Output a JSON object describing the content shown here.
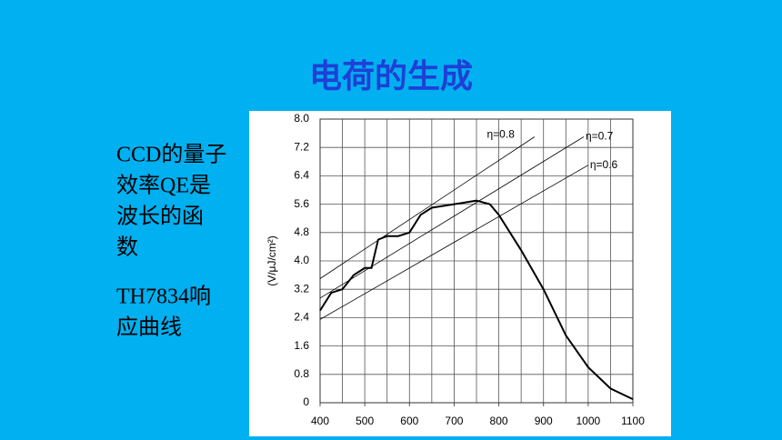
{
  "title": "电荷的生成",
  "paragraphs": [
    [
      "CCD的量子",
      "效率QE是",
      "波长的函",
      "数"
    ],
    [
      "TH7834响",
      "应曲线"
    ]
  ],
  "chart_data": {
    "type": "line",
    "y_label": "(V/μJ/cm²)",
    "xlim": [
      400,
      1100
    ],
    "xticks": [
      400,
      500,
      600,
      700,
      800,
      900,
      1000,
      1100
    ],
    "xgridlines": [
      400,
      450,
      500,
      550,
      600,
      650,
      700,
      750,
      800,
      850,
      900,
      950,
      1000,
      1050,
      1100
    ],
    "ylim": [
      0,
      8
    ],
    "yticks": [
      0,
      0.8,
      1.6,
      2.4,
      3.2,
      {
        "value": 4,
        "label": "4.0"
      },
      4.8,
      5.6,
      6.4,
      7.2,
      {
        "value": 8,
        "label": "8.0"
      }
    ],
    "grid": true,
    "series": [
      {
        "name": "TH7834",
        "color": "#000000",
        "width": 2,
        "x": [
          400,
          425,
          450,
          475,
          500,
          515,
          530,
          550,
          575,
          600,
          625,
          650,
          700,
          750,
          780,
          800,
          850,
          900,
          950,
          1000,
          1050,
          1100
        ],
        "values": [
          2.6,
          3.1,
          3.2,
          3.6,
          3.8,
          3.8,
          4.6,
          4.7,
          4.7,
          4.8,
          5.3,
          5.5,
          5.6,
          5.7,
          5.6,
          5.3,
          4.3,
          3.2,
          1.9,
          1.0,
          0.4,
          0.1
        ]
      },
      {
        "name": "η=0.8",
        "color": "#000000",
        "width": 0.8,
        "x": [
          400,
          880
        ],
        "values": [
          3.5,
          7.5
        ]
      },
      {
        "name": "η=0.7",
        "color": "#000000",
        "width": 0.8,
        "x": [
          400,
          990
        ],
        "values": [
          2.95,
          7.5
        ]
      },
      {
        "name": "η=0.6",
        "color": "#000000",
        "width": 0.8,
        "x": [
          400,
          1000
        ],
        "values": [
          2.35,
          6.7
        ]
      }
    ]
  }
}
